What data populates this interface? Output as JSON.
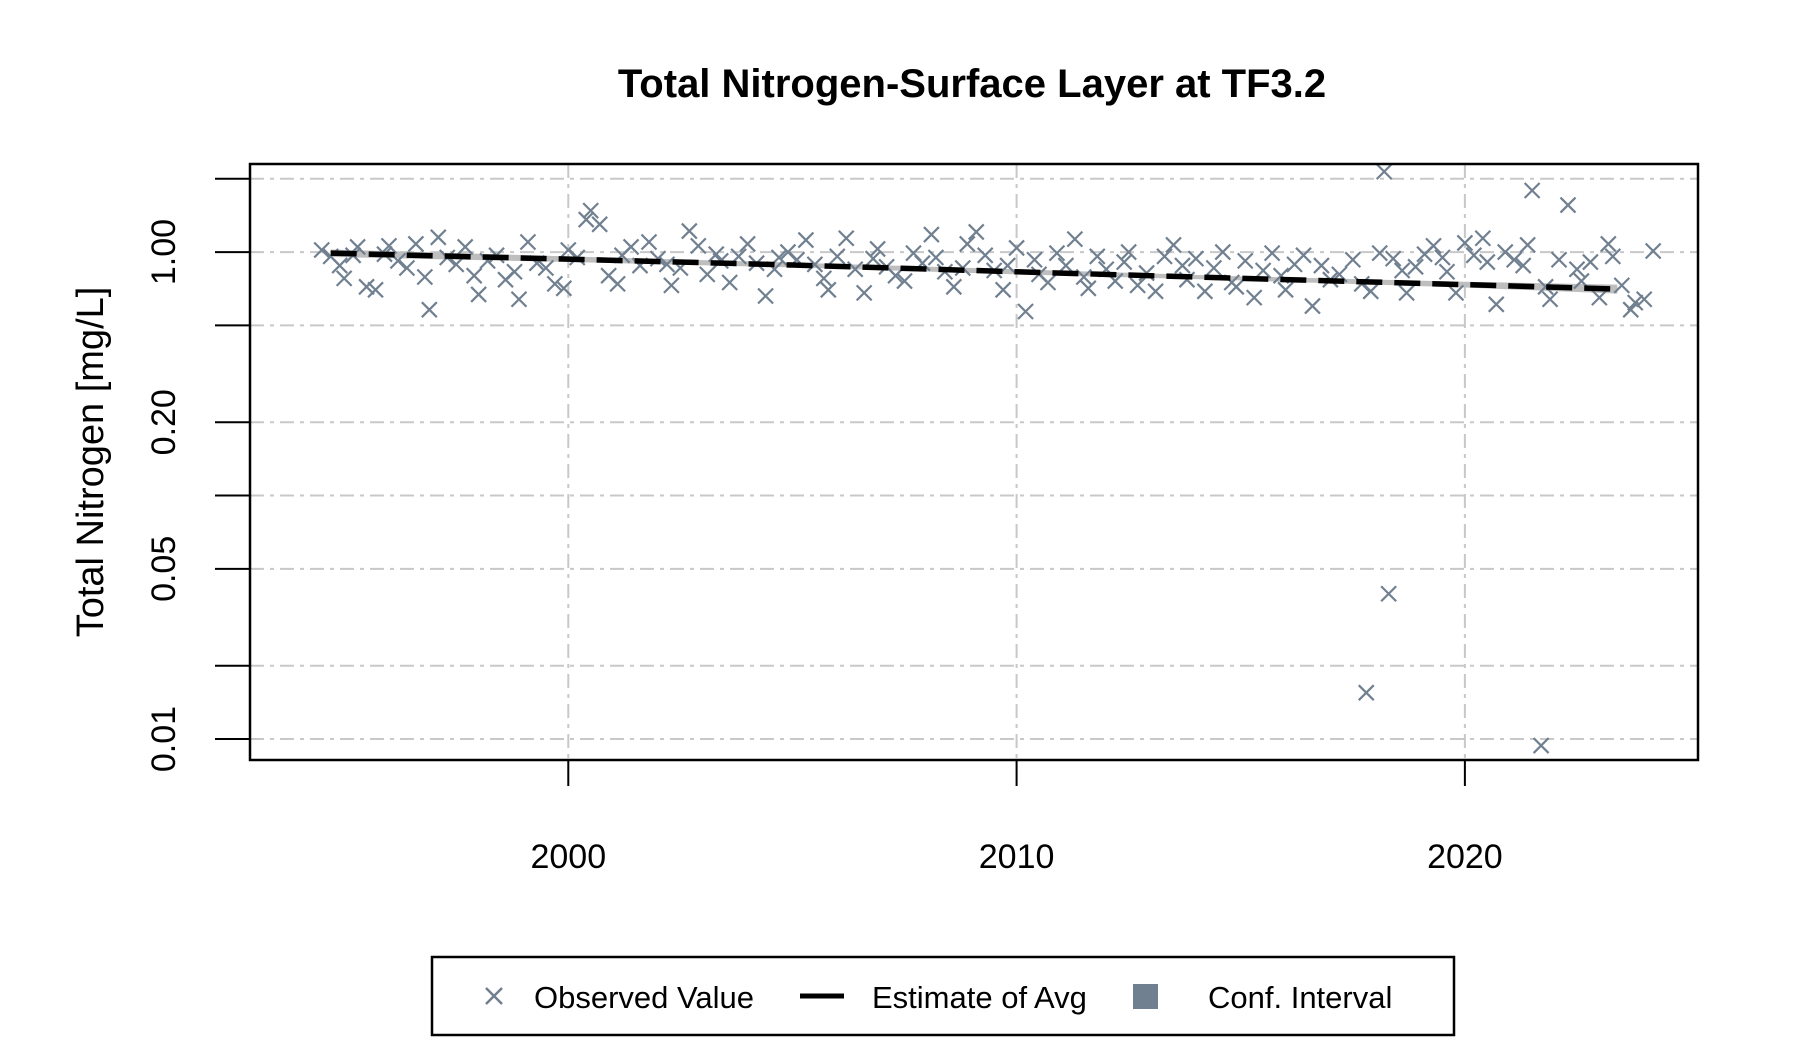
{
  "chart_data": {
    "type": "scatter",
    "title": "Total Nitrogen-Surface Layer at TF3.2",
    "xlabel": "",
    "ylabel": "Total Nitrogen [mg/L]",
    "y_scale": "log",
    "xlim": [
      1992.9,
      2025.2
    ],
    "ylim": [
      0.0082,
      2.3
    ],
    "x_ticks": [
      2000,
      2010,
      2020
    ],
    "y_ticks": [
      0.01,
      0.05,
      0.2,
      1.0
    ],
    "y_tick_labels": [
      "0.01",
      "0.05",
      "0.20",
      "1.00"
    ],
    "y_minor_ticks": [
      0.02,
      0.1,
      0.5,
      2.0
    ],
    "grid": true,
    "legend_position": "bottom",
    "colors": {
      "observed": "#708090",
      "estimate": "#000000",
      "ci": "#bebebe",
      "ci_legend": "#708090"
    },
    "series": [
      {
        "name": "Observed Value",
        "marker": "x",
        "points": [
          [
            1994.5,
            1.02
          ],
          [
            1994.7,
            0.96
          ],
          [
            1994.9,
            0.88
          ],
          [
            1995.0,
            0.78
          ],
          [
            1995.2,
            0.97
          ],
          [
            1995.3,
            1.05
          ],
          [
            1995.5,
            0.72
          ],
          [
            1995.7,
            0.7
          ],
          [
            1995.9,
            0.98
          ],
          [
            1996.0,
            1.06
          ],
          [
            1996.2,
            0.92
          ],
          [
            1996.4,
            0.86
          ],
          [
            1996.6,
            1.08
          ],
          [
            1996.8,
            0.79
          ],
          [
            1996.9,
            0.58
          ],
          [
            1997.1,
            1.15
          ],
          [
            1997.3,
            0.95
          ],
          [
            1997.5,
            0.89
          ],
          [
            1997.7,
            1.05
          ],
          [
            1997.9,
            0.8
          ],
          [
            1998.0,
            0.67
          ],
          [
            1998.2,
            0.92
          ],
          [
            1998.4,
            0.97
          ],
          [
            1998.6,
            0.77
          ],
          [
            1998.8,
            0.83
          ],
          [
            1998.9,
            0.64
          ],
          [
            1999.1,
            1.1
          ],
          [
            1999.3,
            0.9
          ],
          [
            1999.5,
            0.86
          ],
          [
            1999.7,
            0.74
          ],
          [
            1999.9,
            0.71
          ],
          [
            2000.0,
            1.02
          ],
          [
            2000.2,
            0.95
          ],
          [
            2000.4,
            1.36
          ],
          [
            2000.5,
            1.48
          ],
          [
            2000.7,
            1.3
          ],
          [
            2000.9,
            0.8
          ],
          [
            2001.1,
            0.74
          ],
          [
            2001.2,
            0.97
          ],
          [
            2001.4,
            1.05
          ],
          [
            2001.6,
            0.88
          ],
          [
            2001.8,
            1.1
          ],
          [
            2002.0,
            0.94
          ],
          [
            2002.2,
            0.89
          ],
          [
            2002.3,
            0.73
          ],
          [
            2002.5,
            0.86
          ],
          [
            2002.7,
            1.22
          ],
          [
            2002.9,
            1.06
          ],
          [
            2003.1,
            0.81
          ],
          [
            2003.3,
            0.98
          ],
          [
            2003.4,
            0.92
          ],
          [
            2003.6,
            0.75
          ],
          [
            2003.8,
            0.96
          ],
          [
            2004.0,
            1.08
          ],
          [
            2004.2,
            0.9
          ],
          [
            2004.4,
            0.66
          ],
          [
            2004.6,
            0.85
          ],
          [
            2004.7,
            0.95
          ],
          [
            2004.9,
            1.0
          ],
          [
            2005.1,
            0.93
          ],
          [
            2005.3,
            1.12
          ],
          [
            2005.5,
            0.89
          ],
          [
            2005.7,
            0.78
          ],
          [
            2005.8,
            0.7
          ],
          [
            2006.0,
            0.96
          ],
          [
            2006.2,
            1.14
          ],
          [
            2006.4,
            0.85
          ],
          [
            2006.6,
            0.68
          ],
          [
            2006.8,
            0.94
          ],
          [
            2006.9,
            1.03
          ],
          [
            2007.1,
            0.87
          ],
          [
            2007.3,
            0.8
          ],
          [
            2007.5,
            0.76
          ],
          [
            2007.7,
            0.99
          ],
          [
            2007.9,
            0.9
          ],
          [
            2008.1,
            1.18
          ],
          [
            2008.2,
            0.95
          ],
          [
            2008.4,
            0.83
          ],
          [
            2008.6,
            0.72
          ],
          [
            2008.8,
            0.86
          ],
          [
            2008.9,
            1.08
          ],
          [
            2009.1,
            1.21
          ],
          [
            2009.3,
            0.97
          ],
          [
            2009.5,
            0.84
          ],
          [
            2009.7,
            0.7
          ],
          [
            2009.8,
            0.88
          ],
          [
            2010.0,
            1.04
          ],
          [
            2010.2,
            0.57
          ],
          [
            2010.4,
            0.93
          ],
          [
            2010.5,
            0.81
          ],
          [
            2010.7,
            0.75
          ],
          [
            2010.9,
            0.99
          ],
          [
            2011.1,
            0.88
          ],
          [
            2011.3,
            1.13
          ],
          [
            2011.5,
            0.79
          ],
          [
            2011.6,
            0.71
          ],
          [
            2011.8,
            0.96
          ],
          [
            2012.0,
            0.85
          ],
          [
            2012.2,
            0.76
          ],
          [
            2012.4,
            0.91
          ],
          [
            2012.5,
            1.0
          ],
          [
            2012.7,
            0.73
          ],
          [
            2012.9,
            0.82
          ],
          [
            2013.1,
            0.69
          ],
          [
            2013.3,
            0.96
          ],
          [
            2013.5,
            1.07
          ],
          [
            2013.7,
            0.88
          ],
          [
            2013.8,
            0.77
          ],
          [
            2014.0,
            0.94
          ],
          [
            2014.2,
            0.69
          ],
          [
            2014.4,
            0.86
          ],
          [
            2014.6,
            1.0
          ],
          [
            2014.8,
            0.75
          ],
          [
            2014.9,
            0.72
          ],
          [
            2015.1,
            0.92
          ],
          [
            2015.3,
            0.65
          ],
          [
            2015.5,
            0.84
          ],
          [
            2015.7,
            0.99
          ],
          [
            2015.9,
            0.8
          ],
          [
            2016.0,
            0.7
          ],
          [
            2016.2,
            0.89
          ],
          [
            2016.4,
            0.97
          ],
          [
            2016.6,
            0.6
          ],
          [
            2016.8,
            0.88
          ],
          [
            2017.0,
            0.77
          ],
          [
            2017.2,
            0.81
          ],
          [
            2017.5,
            0.93
          ],
          [
            2017.7,
            0.74
          ],
          [
            2017.8,
            0.0155
          ],
          [
            2017.9,
            0.69
          ],
          [
            2018.1,
            0.99
          ],
          [
            2018.2,
            2.14
          ],
          [
            2018.3,
            0.0395
          ],
          [
            2018.4,
            0.94
          ],
          [
            2018.6,
            0.84
          ],
          [
            2018.7,
            0.68
          ],
          [
            2018.9,
            0.87
          ],
          [
            2019.1,
            0.98
          ],
          [
            2019.3,
            1.06
          ],
          [
            2019.5,
            0.95
          ],
          [
            2019.6,
            0.83
          ],
          [
            2019.8,
            0.68
          ],
          [
            2020.0,
            1.09
          ],
          [
            2020.2,
            0.97
          ],
          [
            2020.4,
            1.14
          ],
          [
            2020.5,
            0.91
          ],
          [
            2020.7,
            0.61
          ],
          [
            2020.9,
            1.0
          ],
          [
            2021.1,
            0.93
          ],
          [
            2021.3,
            0.88
          ],
          [
            2021.4,
            1.07
          ],
          [
            2021.5,
            1.79
          ],
          [
            2021.7,
            0.0094
          ],
          [
            2021.8,
            0.72
          ],
          [
            2021.9,
            0.64
          ],
          [
            2022.1,
            0.93
          ],
          [
            2022.3,
            1.56
          ],
          [
            2022.5,
            0.85
          ],
          [
            2022.6,
            0.76
          ],
          [
            2022.8,
            0.91
          ],
          [
            2023.0,
            0.65
          ],
          [
            2023.2,
            1.08
          ],
          [
            2023.3,
            0.96
          ],
          [
            2023.5,
            0.73
          ],
          [
            2023.7,
            0.58
          ],
          [
            2023.8,
            0.62
          ],
          [
            2024.0,
            0.64
          ],
          [
            2024.2,
            1.01
          ]
        ]
      },
      {
        "name": "Estimate of Avg",
        "line": "dashed",
        "x": [
          1994.7,
          2000.0,
          2005.0,
          2010.0,
          2015.0,
          2020.0,
          2023.4
        ],
        "y": [
          0.99,
          0.935,
          0.885,
          0.83,
          0.78,
          0.735,
          0.705
        ]
      },
      {
        "name": "Conf. Interval",
        "type": "band",
        "x": [
          1994.7,
          2000.0,
          2005.0,
          2010.0,
          2015.0,
          2020.0,
          2023.4
        ],
        "lower": [
          0.955,
          0.91,
          0.865,
          0.81,
          0.765,
          0.715,
          0.675
        ],
        "upper": [
          1.025,
          0.96,
          0.905,
          0.85,
          0.795,
          0.755,
          0.735
        ]
      }
    ]
  },
  "legend": {
    "items": [
      {
        "label": "Observed Value",
        "symbol": "x"
      },
      {
        "label": "Estimate of Avg",
        "symbol": "dash"
      },
      {
        "label": "Conf. Interval",
        "symbol": "square"
      }
    ]
  }
}
